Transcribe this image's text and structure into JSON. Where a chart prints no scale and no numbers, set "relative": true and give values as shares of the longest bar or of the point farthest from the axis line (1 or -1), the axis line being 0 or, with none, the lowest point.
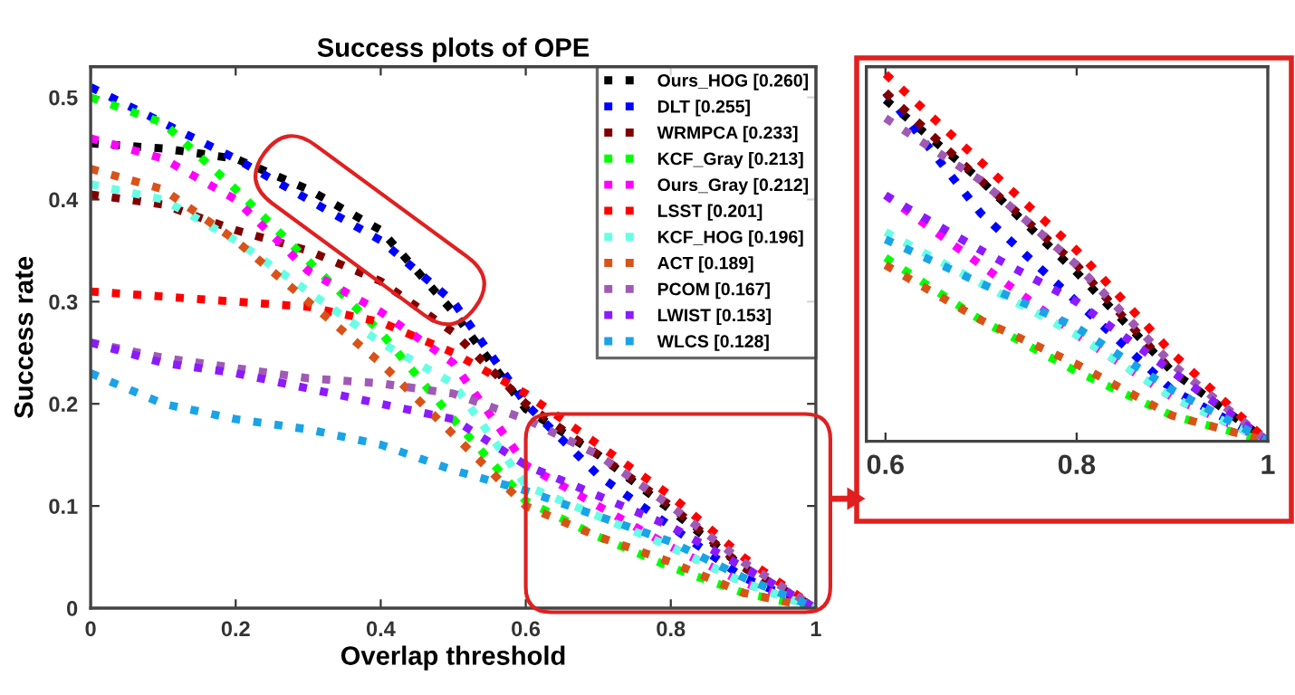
{
  "chart_data": [
    {
      "type": "line",
      "title": "Success plots of OPE",
      "xlabel": "Overlap threshold",
      "ylabel": "Success rate",
      "x": [
        0,
        0.1,
        0.2,
        0.3,
        0.4,
        0.5,
        0.6,
        0.7,
        0.8,
        0.9,
        1
      ],
      "xlim": [
        0,
        1
      ],
      "ylim": [
        0,
        0.53
      ],
      "xticks": [
        0,
        0.2,
        0.4,
        0.6,
        0.8,
        1
      ],
      "yticks": [
        0,
        0.1,
        0.2,
        0.3,
        0.4,
        0.5
      ],
      "line_style": "dotted",
      "marker": "none",
      "grid": false,
      "legend": "top right",
      "series": [
        {
          "name": "Ours_HOG [0.260]",
          "color": "#000000",
          "values": [
            0.455,
            0.45,
            0.44,
            0.41,
            0.37,
            0.29,
            0.195,
            0.15,
            0.096,
            0.04,
            0
          ]
        },
        {
          "name": "DLT [0.255]",
          "color": "#0000ff",
          "values": [
            0.51,
            0.475,
            0.44,
            0.4,
            0.36,
            0.3,
            0.2,
            0.13,
            0.08,
            0.03,
            0
          ]
        },
        {
          "name": "WRMPCA [0.233]",
          "color": "#800000",
          "values": [
            0.405,
            0.395,
            0.37,
            0.35,
            0.32,
            0.27,
            0.2,
            0.15,
            0.1,
            0.04,
            0
          ]
        },
        {
          "name": "KCF_Gray [0.213]",
          "color": "#00ff00",
          "values": [
            0.5,
            0.475,
            0.41,
            0.34,
            0.27,
            0.185,
            0.105,
            0.07,
            0.04,
            0.015,
            0
          ]
        },
        {
          "name": "Ours_Gray [0.212]",
          "color": "#ff00ff",
          "values": [
            0.46,
            0.44,
            0.4,
            0.33,
            0.29,
            0.24,
            0.14,
            0.1,
            0.06,
            0.025,
            0
          ]
        },
        {
          "name": "LSST [0.201]",
          "color": "#ff0000",
          "values": [
            0.31,
            0.305,
            0.3,
            0.295,
            0.28,
            0.25,
            0.21,
            0.16,
            0.11,
            0.05,
            0
          ]
        },
        {
          "name": "KCF_HOG [0.196]",
          "color": "#66ffe6",
          "values": [
            0.415,
            0.4,
            0.36,
            0.31,
            0.26,
            0.22,
            0.12,
            0.09,
            0.06,
            0.025,
            0
          ]
        },
        {
          "name": "ACT [0.189]",
          "color": "#d95319",
          "values": [
            0.43,
            0.41,
            0.36,
            0.3,
            0.24,
            0.17,
            0.1,
            0.07,
            0.045,
            0.015,
            0
          ]
        },
        {
          "name": "PCOM [0.167]",
          "color": "#a05ab4",
          "values": [
            0.26,
            0.245,
            0.235,
            0.225,
            0.22,
            0.21,
            0.185,
            0.15,
            0.1,
            0.045,
            0
          ]
        },
        {
          "name": "LWIST [0.153]",
          "color": "#8c1aff",
          "values": [
            0.26,
            0.24,
            0.23,
            0.215,
            0.2,
            0.185,
            0.14,
            0.11,
            0.08,
            0.04,
            0
          ]
        },
        {
          "name": "WLCS [0.128]",
          "color": "#1aa3e6",
          "values": [
            0.23,
            0.2,
            0.185,
            0.175,
            0.16,
            0.135,
            0.115,
            0.09,
            0.065,
            0.03,
            0
          ]
        }
      ]
    },
    {
      "type": "line",
      "x": [
        0.6,
        0.7,
        0.8,
        0.9,
        1
      ],
      "xlim": [
        0.58,
        1
      ],
      "xticks": [
        0.6,
        0.8,
        1
      ],
      "relative": true,
      "tick_labels": "x",
      "line_style": "dotted",
      "marker": "none",
      "grid": false,
      "series": [
        {
          "color": "#000000",
          "values": [
            0.93,
            0.71,
            0.46,
            0.19,
            0
          ]
        },
        {
          "color": "#0000ff",
          "values": [
            0.95,
            0.62,
            0.38,
            0.14,
            0
          ]
        },
        {
          "color": "#800000",
          "values": [
            0.95,
            0.71,
            0.48,
            0.19,
            0
          ]
        },
        {
          "color": "#00ff00",
          "values": [
            0.5,
            0.33,
            0.19,
            0.07,
            0
          ]
        },
        {
          "color": "#ff00ff",
          "values": [
            0.67,
            0.48,
            0.29,
            0.12,
            0
          ]
        },
        {
          "color": "#ff0000",
          "values": [
            1,
            0.76,
            0.52,
            0.24,
            0
          ]
        },
        {
          "color": "#66ffe6",
          "values": [
            0.57,
            0.43,
            0.29,
            0.12,
            0
          ]
        },
        {
          "color": "#d95319",
          "values": [
            0.48,
            0.33,
            0.21,
            0.07,
            0
          ]
        },
        {
          "color": "#a05ab4",
          "values": [
            0.88,
            0.71,
            0.48,
            0.21,
            0
          ]
        },
        {
          "color": "#8c1aff",
          "values": [
            0.67,
            0.52,
            0.38,
            0.19,
            0
          ]
        },
        {
          "color": "#1aa3e6",
          "values": [
            0.55,
            0.43,
            0.31,
            0.14,
            0
          ]
        }
      ]
    }
  ]
}
